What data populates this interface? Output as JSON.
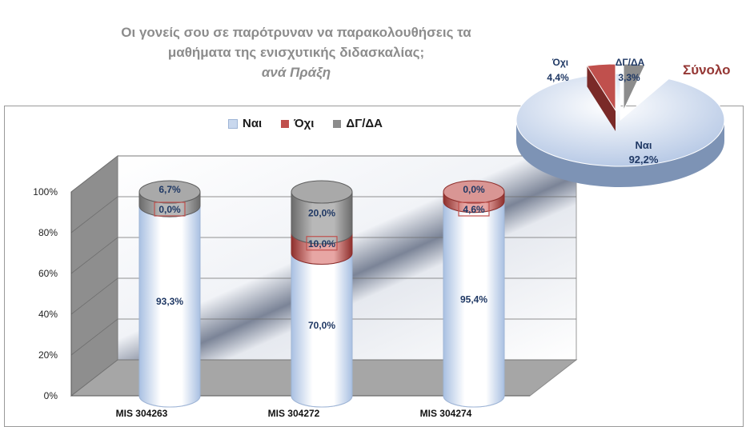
{
  "title": {
    "line1": "Οι γονείς σου σε παρότρυναν να παρακολουθήσεις  τα",
    "line2": "μαθήματα της ενισχυτικής διδασκαλίας;",
    "subtitle": "ανά Πράξη"
  },
  "colors": {
    "nai": "#c9d8ee",
    "oxi": "#c0504d",
    "dg": "#8c8c8c",
    "label_text": "#1f3864",
    "pie_title": "#953734"
  },
  "chart_data": [
    {
      "type": "bar",
      "stacked": true,
      "percent": true,
      "categories": [
        "MIS 304263",
        "MIS 304272",
        "MIS 304274"
      ],
      "series": [
        {
          "name": "Ναι",
          "values": [
            93.3,
            70.0,
            95.4
          ],
          "labels": [
            "93,3%",
            "70,0%",
            "95,4%"
          ]
        },
        {
          "name": "Όχι",
          "values": [
            0.0,
            10.0,
            4.6
          ],
          "labels": [
            "0,0%",
            "10,0%",
            "4,6%"
          ]
        },
        {
          "name": "ΔΓ/ΔΑ",
          "values": [
            6.7,
            20.0,
            0.0
          ],
          "labels": [
            "6,7%",
            "20,0%",
            "0,0%"
          ]
        }
      ],
      "yticks": [
        "0%",
        "20%",
        "40%",
        "60%",
        "80%",
        "100%"
      ],
      "ylim": [
        0,
        100
      ],
      "legend": "top"
    },
    {
      "type": "pie",
      "title": "Σύνολο",
      "slices": [
        {
          "name": "Ναι",
          "value": 92.2,
          "label": "92,2%"
        },
        {
          "name": "Όχι",
          "value": 4.4,
          "label": "4,4%"
        },
        {
          "name": "ΔΓ/ΔΑ",
          "value": 3.3,
          "label": "3,3%"
        }
      ]
    }
  ]
}
